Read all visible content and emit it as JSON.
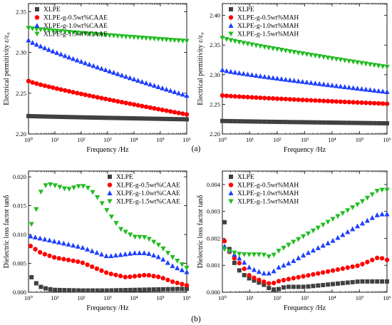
{
  "figure": {
    "panel_labels": [
      "(a)",
      "(b)"
    ]
  },
  "chart_data": [
    {
      "type": "scatter",
      "id": "a1",
      "xlabel": "Frequency /Hz",
      "ylabel": "Electrical permitivity ε/ε₀",
      "xscale": "log",
      "xlim": [
        1,
        1000000
      ],
      "ylim": [
        2.2,
        2.36
      ],
      "xticks": [
        1,
        10,
        100,
        1000,
        10000,
        100000,
        1000000
      ],
      "xtick_labels": [
        "10⁰",
        "10¹",
        "10²",
        "10³",
        "10⁴",
        "10⁵",
        "10⁶"
      ],
      "yticks": [
        2.2,
        2.25,
        2.3,
        2.35
      ],
      "ytick_labels": [
        "2.20",
        "2.25",
        "2.30",
        "2.35"
      ],
      "legend_position": "top-left",
      "series": [
        {
          "name": "XLPE",
          "color": "#404040",
          "marker": "square",
          "y_start": 2.222,
          "y_end": 2.218
        },
        {
          "name": "XLPE-g-0.5wt%CAAE",
          "color": "#ff0000",
          "marker": "circle",
          "y_start": 2.265,
          "y_end": 2.224
        },
        {
          "name": "XLPE-g-1.0wt%CAAE",
          "color": "#1f3fff",
          "marker": "triangle-up",
          "y_start": 2.315,
          "y_end": 2.247
        },
        {
          "name": "XLPE-g-1.5wt%CAAE",
          "color": "#22bb22",
          "marker": "triangle-down",
          "y_start": 2.33,
          "y_end": 2.314
        }
      ]
    },
    {
      "type": "scatter",
      "id": "a2",
      "xlabel": "Frequency /Hz",
      "ylabel": "Electrical permitivity ε/ε₀",
      "xscale": "log",
      "xlim": [
        1,
        1000000
      ],
      "ylim": [
        2.2,
        2.42
      ],
      "xticks": [
        1,
        10,
        100,
        1000,
        10000,
        100000,
        1000000
      ],
      "xtick_labels": [
        "10⁰",
        "10¹",
        "10²",
        "10³",
        "10⁴",
        "10⁵",
        "10⁶"
      ],
      "yticks": [
        2.2,
        2.25,
        2.3,
        2.35,
        2.4
      ],
      "ytick_labels": [
        "2.20",
        "2.25",
        "2.30",
        "2.35",
        "2.40"
      ],
      "legend_position": "top-left",
      "series": [
        {
          "name": "XLPE",
          "color": "#404040",
          "marker": "square",
          "y_start": 2.222,
          "y_end": 2.218
        },
        {
          "name": "XLPE-g-0.5wt%MAH",
          "color": "#ff0000",
          "marker": "circle",
          "y_start": 2.265,
          "y_end": 2.251
        },
        {
          "name": "XLPE-g-1.0wt%MAH",
          "color": "#1f3fff",
          "marker": "triangle-up",
          "y_start": 2.308,
          "y_end": 2.271
        },
        {
          "name": "XLPE-g-1.5wt%MAH",
          "color": "#22bb22",
          "marker": "triangle-down",
          "y_start": 2.362,
          "y_end": 2.313
        }
      ]
    },
    {
      "type": "scatter",
      "id": "b1",
      "xlabel": "Frequency /Hz",
      "ylabel": "Dielectric loss factor tanδ",
      "xscale": "log",
      "xlim": [
        1,
        1000000
      ],
      "ylim": [
        0,
        0.021
      ],
      "xticks": [
        1,
        10,
        100,
        1000,
        10000,
        100000,
        1000000
      ],
      "xtick_labels": [
        "10⁰",
        "10¹",
        "10²",
        "10³",
        "10⁴",
        "10⁵",
        "10⁶"
      ],
      "yticks": [
        0,
        0.005,
        0.01,
        0.015,
        0.02
      ],
      "ytick_labels": [
        "0.000",
        "0.005",
        "0.010",
        "0.015",
        "0.020"
      ],
      "legend_position": "top-right",
      "series": [
        {
          "name": "XLPE",
          "color": "#404040",
          "marker": "square",
          "points": [
            [
              1.3,
              0.0026
            ],
            [
              2,
              0.0015
            ],
            [
              3,
              0.0009
            ],
            [
              5,
              0.0006
            ],
            [
              10,
              0.0004
            ],
            [
              100,
              0.0003
            ],
            [
              1000,
              0.0003
            ],
            [
              10000,
              0.0004
            ],
            [
              100000,
              0.0005
            ],
            [
              1000000,
              0.0006
            ]
          ]
        },
        {
          "name": "XLPE-g-0.5wt%CAAE",
          "color": "#ff0000",
          "marker": "circle",
          "points": [
            [
              1.2,
              0.008
            ],
            [
              3,
              0.0068
            ],
            [
              10,
              0.006
            ],
            [
              100,
              0.0052
            ],
            [
              1000,
              0.0033
            ],
            [
              5000,
              0.0026
            ],
            [
              30000,
              0.003
            ],
            [
              100000,
              0.0026
            ],
            [
              300000,
              0.0018
            ],
            [
              1000000,
              0.0012
            ]
          ]
        },
        {
          "name": "XLPE-g-1.0wt%CAAE",
          "color": "#1f3fff",
          "marker": "triangle-up",
          "points": [
            [
              1.2,
              0.0097
            ],
            [
              10,
              0.0088
            ],
            [
              100,
              0.0078
            ],
            [
              1000,
              0.0062
            ],
            [
              10000,
              0.0068
            ],
            [
              30000,
              0.0068
            ],
            [
              100000,
              0.006
            ],
            [
              300000,
              0.0045
            ],
            [
              1000000,
              0.0035
            ]
          ]
        },
        {
          "name": "XLPE-g-1.5wt%CAAE",
          "color": "#22bb22",
          "marker": "triangle-down",
          "points": [
            [
              1.3,
              0.0118
            ],
            [
              2,
              0.0145
            ],
            [
              3,
              0.0175
            ],
            [
              5,
              0.0188
            ],
            [
              10,
              0.0185
            ],
            [
              30,
              0.0178
            ],
            [
              100,
              0.0185
            ],
            [
              200,
              0.018
            ],
            [
              500,
              0.016
            ],
            [
              1000,
              0.014
            ],
            [
              3000,
              0.011
            ],
            [
              10000,
              0.0096
            ],
            [
              30000,
              0.0095
            ],
            [
              100000,
              0.008
            ],
            [
              300000,
              0.006
            ],
            [
              1000000,
              0.0042
            ]
          ]
        }
      ]
    },
    {
      "type": "scatter",
      "id": "b2",
      "xlabel": "Frequency /Hz",
      "ylabel": "Dielectric loss factor tanδ",
      "xscale": "log",
      "xlim": [
        1,
        1000000
      ],
      "ylim": [
        0,
        0.0045
      ],
      "xticks": [
        1,
        10,
        100,
        1000,
        10000,
        100000,
        1000000
      ],
      "xtick_labels": [
        "10⁰",
        "10¹",
        "10²",
        "10³",
        "10⁴",
        "10⁵",
        "10⁶"
      ],
      "yticks": [
        0,
        0.001,
        0.002,
        0.003,
        0.004
      ],
      "ytick_labels": [
        "0.000",
        "0.001",
        "0.002",
        "0.003",
        "0.004"
      ],
      "legend_position": "top-left",
      "series": [
        {
          "name": "XLPE",
          "color": "#404040",
          "marker": "square",
          "points": [
            [
              1.2,
              0.0026
            ],
            [
              1.5,
              0.002
            ],
            [
              2,
              0.0014
            ],
            [
              3,
              0.001
            ],
            [
              5,
              0.0007
            ],
            [
              10,
              0.0005
            ],
            [
              30,
              0.0003
            ],
            [
              60,
              0.0001
            ],
            [
              100,
              0.0001
            ],
            [
              200,
              0.0002
            ],
            [
              1000,
              0.0002
            ],
            [
              10000,
              0.0003
            ],
            [
              100000,
              0.0004
            ],
            [
              1000000,
              0.0004
            ]
          ]
        },
        {
          "name": "XLPE-g-0.5wt%MAH",
          "color": "#ff0000",
          "marker": "circle",
          "points": [
            [
              1.2,
              0.0019
            ],
            [
              2,
              0.0014
            ],
            [
              5,
              0.001
            ],
            [
              10,
              0.0006
            ],
            [
              30,
              0.0004
            ],
            [
              60,
              0.0003
            ],
            [
              100,
              0.0004
            ],
            [
              300,
              0.0005
            ],
            [
              1000,
              0.0006
            ],
            [
              10000,
              0.0008
            ],
            [
              100000,
              0.001
            ],
            [
              500000,
              0.0013
            ],
            [
              1000000,
              0.0012
            ]
          ]
        },
        {
          "name": "XLPE-g-1.0wt%MAH",
          "color": "#1f3fff",
          "marker": "triangle-up",
          "points": [
            [
              1.2,
              0.0017
            ],
            [
              2,
              0.0015
            ],
            [
              5,
              0.0012
            ],
            [
              10,
              0.0009
            ],
            [
              30,
              0.0007
            ],
            [
              60,
              0.0007
            ],
            [
              100,
              0.0009
            ],
            [
              300,
              0.0011
            ],
            [
              1000,
              0.0014
            ],
            [
              10000,
              0.0019
            ],
            [
              100000,
              0.0025
            ],
            [
              500000,
              0.0029
            ],
            [
              1000000,
              0.0029
            ]
          ]
        },
        {
          "name": "XLPE-g-1.5wt%MAH",
          "color": "#22bb22",
          "marker": "triangle-down",
          "points": [
            [
              1.2,
              0.0016
            ],
            [
              2,
              0.0015
            ],
            [
              5,
              0.0014
            ],
            [
              10,
              0.0014
            ],
            [
              30,
              0.0014
            ],
            [
              60,
              0.0013
            ],
            [
              100,
              0.0015
            ],
            [
              300,
              0.0018
            ],
            [
              1000,
              0.0021
            ],
            [
              10000,
              0.0027
            ],
            [
              100000,
              0.0033
            ],
            [
              500000,
              0.0038
            ],
            [
              1000000,
              0.0038
            ]
          ]
        }
      ]
    }
  ]
}
